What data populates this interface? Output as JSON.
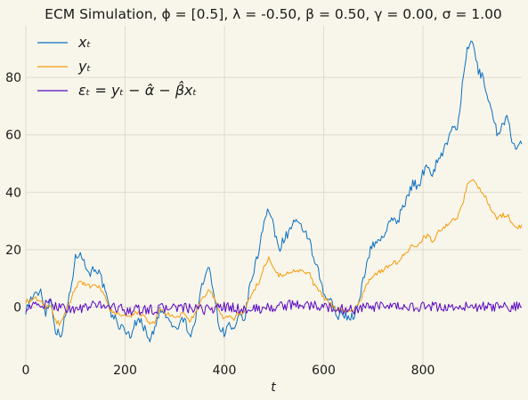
{
  "chart_data": {
    "type": "line",
    "title": "ECM Simulation, ϕ = [0.5], λ = -0.50, β = 0.50, γ = 0.00, σ = 1.00",
    "xlabel": "t",
    "ylabel": "",
    "xlim": [
      0,
      999
    ],
    "ylim": [
      -20,
      98
    ],
    "x_ticks": [
      0,
      200,
      400,
      600,
      800
    ],
    "y_ticks": [
      0,
      20,
      40,
      60,
      80
    ],
    "grid": true,
    "legend_position": "top-left",
    "series": [
      {
        "name": "x_t",
        "label": "xₜ",
        "color": "#0a6fc2",
        "points": [
          [
            0,
            -1
          ],
          [
            10,
            3
          ],
          [
            20,
            4
          ],
          [
            30,
            6
          ],
          [
            40,
            -2
          ],
          [
            50,
            3
          ],
          [
            60,
            -8
          ],
          [
            70,
            -10
          ],
          [
            80,
            -3
          ],
          [
            90,
            6
          ],
          [
            100,
            17
          ],
          [
            110,
            20
          ],
          [
            120,
            14
          ],
          [
            130,
            12
          ],
          [
            140,
            14
          ],
          [
            150,
            11
          ],
          [
            160,
            5
          ],
          [
            170,
            -2
          ],
          [
            180,
            -4
          ],
          [
            190,
            -7
          ],
          [
            200,
            -8
          ],
          [
            210,
            -10
          ],
          [
            220,
            -6
          ],
          [
            230,
            -4
          ],
          [
            240,
            -8
          ],
          [
            250,
            -11
          ],
          [
            260,
            -8
          ],
          [
            270,
            -1
          ],
          [
            280,
            -3
          ],
          [
            290,
            -5
          ],
          [
            300,
            -8
          ],
          [
            310,
            -6
          ],
          [
            320,
            -4
          ],
          [
            330,
            -10
          ],
          [
            340,
            -6
          ],
          [
            350,
            4
          ],
          [
            360,
            10
          ],
          [
            370,
            14
          ],
          [
            380,
            4
          ],
          [
            390,
            -7
          ],
          [
            400,
            -9
          ],
          [
            410,
            -6
          ],
          [
            420,
            -9
          ],
          [
            430,
            -3
          ],
          [
            440,
            -5
          ],
          [
            450,
            6
          ],
          [
            460,
            13
          ],
          [
            470,
            20
          ],
          [
            480,
            31
          ],
          [
            490,
            34
          ],
          [
            500,
            27
          ],
          [
            510,
            20
          ],
          [
            520,
            24
          ],
          [
            530,
            26
          ],
          [
            540,
            30
          ],
          [
            550,
            28
          ],
          [
            560,
            27
          ],
          [
            570,
            24
          ],
          [
            580,
            16
          ],
          [
            590,
            12
          ],
          [
            600,
            4
          ],
          [
            610,
            3
          ],
          [
            620,
            0
          ],
          [
            630,
            -3
          ],
          [
            640,
            -2
          ],
          [
            650,
            -4
          ],
          [
            660,
            -3
          ],
          [
            670,
            0
          ],
          [
            680,
            10
          ],
          [
            690,
            18
          ],
          [
            700,
            22
          ],
          [
            710,
            23
          ],
          [
            720,
            25
          ],
          [
            730,
            28
          ],
          [
            740,
            31
          ],
          [
            750,
            30
          ],
          [
            760,
            36
          ],
          [
            770,
            38
          ],
          [
            780,
            44
          ],
          [
            790,
            41
          ],
          [
            800,
            47
          ],
          [
            810,
            50
          ],
          [
            820,
            46
          ],
          [
            830,
            52
          ],
          [
            840,
            54
          ],
          [
            850,
            58
          ],
          [
            860,
            62
          ],
          [
            870,
            63
          ],
          [
            880,
            78
          ],
          [
            890,
            90
          ],
          [
            900,
            93
          ],
          [
            910,
            83
          ],
          [
            920,
            80
          ],
          [
            930,
            74
          ],
          [
            940,
            67
          ],
          [
            950,
            60
          ],
          [
            960,
            64
          ],
          [
            970,
            66
          ],
          [
            980,
            57
          ],
          [
            990,
            55
          ],
          [
            999,
            57
          ]
        ]
      },
      {
        "name": "y_t",
        "label": "yₜ",
        "color": "#f59a0b",
        "points": [
          [
            0,
            2
          ],
          [
            10,
            2
          ],
          [
            20,
            3
          ],
          [
            30,
            2
          ],
          [
            40,
            0
          ],
          [
            50,
            1
          ],
          [
            60,
            -5
          ],
          [
            70,
            -6
          ],
          [
            80,
            -2
          ],
          [
            90,
            2
          ],
          [
            100,
            7
          ],
          [
            110,
            9
          ],
          [
            120,
            8
          ],
          [
            130,
            7
          ],
          [
            140,
            7
          ],
          [
            150,
            7
          ],
          [
            160,
            3
          ],
          [
            170,
            -1
          ],
          [
            180,
            -2
          ],
          [
            190,
            -3
          ],
          [
            200,
            -3
          ],
          [
            210,
            -4
          ],
          [
            220,
            -2
          ],
          [
            230,
            -2
          ],
          [
            240,
            -4
          ],
          [
            250,
            -6
          ],
          [
            260,
            -5
          ],
          [
            270,
            -1
          ],
          [
            280,
            -2
          ],
          [
            290,
            -3
          ],
          [
            300,
            -4
          ],
          [
            310,
            -3
          ],
          [
            320,
            -2
          ],
          [
            330,
            -5
          ],
          [
            340,
            -3
          ],
          [
            350,
            1
          ],
          [
            360,
            4
          ],
          [
            370,
            6
          ],
          [
            380,
            3
          ],
          [
            390,
            -2
          ],
          [
            400,
            -4
          ],
          [
            410,
            -3
          ],
          [
            420,
            -4
          ],
          [
            430,
            -2
          ],
          [
            440,
            -2
          ],
          [
            450,
            3
          ],
          [
            460,
            6
          ],
          [
            470,
            9
          ],
          [
            480,
            14
          ],
          [
            490,
            17
          ],
          [
            500,
            14
          ],
          [
            510,
            11
          ],
          [
            520,
            11
          ],
          [
            530,
            12
          ],
          [
            540,
            13
          ],
          [
            550,
            13
          ],
          [
            560,
            12
          ],
          [
            570,
            12
          ],
          [
            580,
            8
          ],
          [
            590,
            6
          ],
          [
            600,
            3
          ],
          [
            610,
            2
          ],
          [
            620,
            0
          ],
          [
            630,
            -1
          ],
          [
            640,
            -1
          ],
          [
            650,
            -2
          ],
          [
            660,
            -1
          ],
          [
            670,
            1
          ],
          [
            680,
            5
          ],
          [
            690,
            9
          ],
          [
            700,
            11
          ],
          [
            710,
            12
          ],
          [
            720,
            13
          ],
          [
            730,
            14
          ],
          [
            740,
            16
          ],
          [
            750,
            15
          ],
          [
            760,
            18
          ],
          [
            770,
            19
          ],
          [
            780,
            22
          ],
          [
            790,
            21
          ],
          [
            800,
            24
          ],
          [
            810,
            25
          ],
          [
            820,
            23
          ],
          [
            830,
            26
          ],
          [
            840,
            27
          ],
          [
            850,
            29
          ],
          [
            860,
            31
          ],
          [
            870,
            31
          ],
          [
            880,
            36
          ],
          [
            890,
            43
          ],
          [
            900,
            45
          ],
          [
            910,
            42
          ],
          [
            920,
            40
          ],
          [
            930,
            37
          ],
          [
            940,
            33
          ],
          [
            950,
            31
          ],
          [
            960,
            32
          ],
          [
            970,
            32
          ],
          [
            980,
            29
          ],
          [
            990,
            28
          ],
          [
            999,
            28
          ]
        ]
      },
      {
        "name": "epsilon_t",
        "label": "εₜ = yₜ − α̂ − β̂xₜ",
        "color": "#5a06c4",
        "points": [
          [
            0,
            0
          ],
          [
            50,
            1
          ],
          [
            100,
            -1
          ],
          [
            150,
            1
          ],
          [
            200,
            -1
          ],
          [
            250,
            -1
          ],
          [
            300,
            0
          ],
          [
            350,
            -1
          ],
          [
            400,
            0
          ],
          [
            450,
            -1
          ],
          [
            500,
            0
          ],
          [
            550,
            1
          ],
          [
            600,
            0
          ],
          [
            650,
            -1
          ],
          [
            700,
            0
          ],
          [
            750,
            0
          ],
          [
            800,
            0
          ],
          [
            850,
            0
          ],
          [
            900,
            0
          ],
          [
            950,
            0
          ],
          [
            999,
            0
          ]
        ]
      }
    ]
  }
}
